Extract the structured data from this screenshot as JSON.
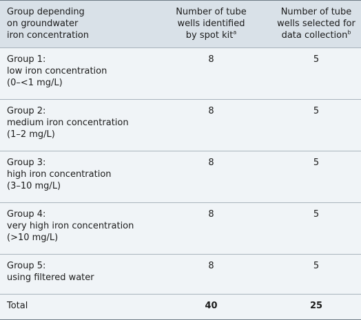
{
  "header": {
    "col1": [
      "Group depending",
      "on groundwater",
      "iron concentration"
    ],
    "col2": [
      "Number of tube",
      "wells identified",
      "by spot kit"
    ],
    "col2_sup": "a",
    "col3": [
      "Number of tube",
      "wells selected for",
      "data collection"
    ],
    "col3_sup": "b"
  },
  "rows": [
    {
      "label": [
        "Group 1:",
        "low iron concentration",
        "(0–<1 mg/L)"
      ],
      "identified": "8",
      "selected": "5"
    },
    {
      "label": [
        "Group 2:",
        "medium iron concentration",
        "(1–2 mg/L)"
      ],
      "identified": "8",
      "selected": "5"
    },
    {
      "label": [
        "Group 3:",
        "high iron concentration",
        "(3–10 mg/L)"
      ],
      "identified": "8",
      "selected": "5"
    },
    {
      "label": [
        "Group 4:",
        "very high iron concentration",
        "(>10 mg/L)"
      ],
      "identified": "8",
      "selected": "5"
    },
    {
      "label": [
        "Group 5:",
        "using filtered water"
      ],
      "identified": "8",
      "selected": "5"
    }
  ],
  "total": {
    "label": "Total",
    "identified": "40",
    "selected": "25"
  }
}
